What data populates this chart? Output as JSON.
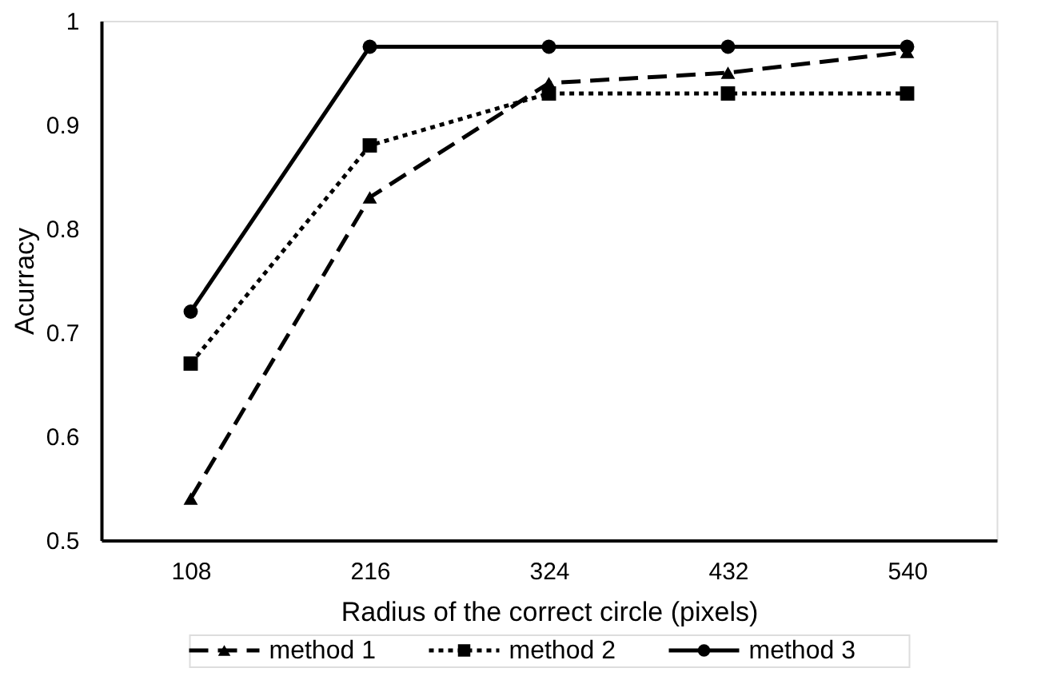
{
  "chart_data": {
    "type": "line",
    "xlabel": "Radius of the correct circle (pixels)",
    "ylabel": "Acurracy",
    "categories": [
      "108",
      "216",
      "324",
      "432",
      "540"
    ],
    "series": [
      {
        "name": "method 1",
        "color": "#000000",
        "marker": "triangle",
        "line_style": "dashed",
        "values": [
          0.54,
          0.83,
          0.94,
          0.95,
          0.97
        ]
      },
      {
        "name": "method 2",
        "color": "#000000",
        "marker": "square",
        "line_style": "dotted",
        "values": [
          0.67,
          0.88,
          0.93,
          0.93,
          0.93
        ]
      },
      {
        "name": "method 3",
        "color": "#000000",
        "marker": "circle",
        "line_style": "solid",
        "values": [
          0.72,
          0.975,
          0.975,
          0.975,
          0.975
        ]
      }
    ],
    "ylim": [
      0.5,
      1
    ],
    "yticks": [
      0.5,
      0.6,
      0.7,
      0.8,
      0.9,
      1
    ],
    "grid": false,
    "legend": "bottom"
  }
}
